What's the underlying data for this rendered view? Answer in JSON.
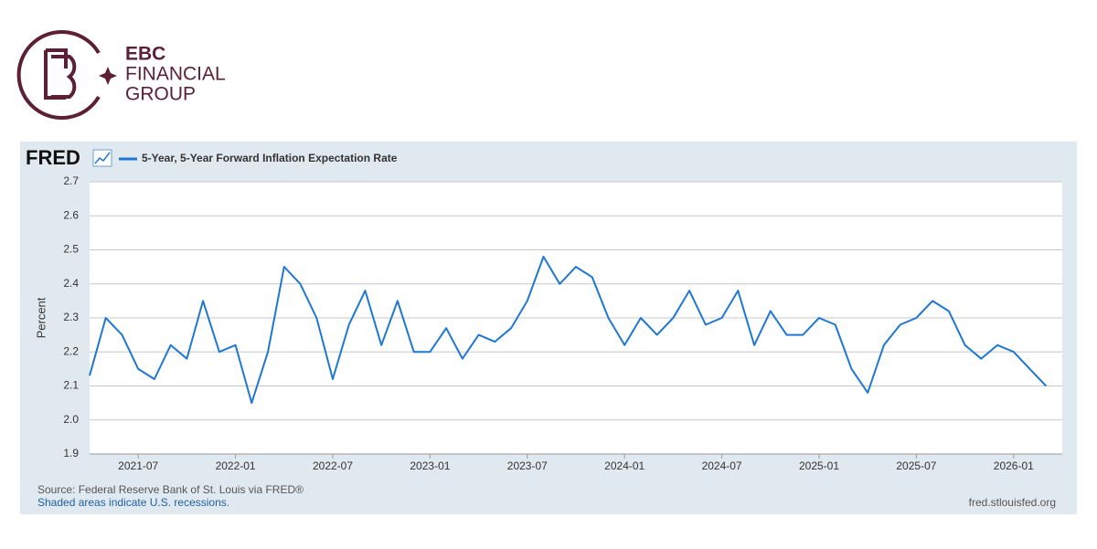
{
  "logo": {
    "name": "EBC",
    "lines": [
      "FINANCIAL",
      "GROUP"
    ]
  },
  "chart_data": {
    "type": "line",
    "brand": "FRED",
    "y_label": "Percent",
    "source": "Source: Federal Reserve Bank of St. Louis via FRED®",
    "note": "Shaded areas indicate U.S. recessions.",
    "site": "fred.stlouisfed.org",
    "x": [
      "2021-04",
      "2021-05",
      "2021-06",
      "2021-07",
      "2021-08",
      "2021-09",
      "2021-10",
      "2021-11",
      "2021-12",
      "2022-01",
      "2022-02",
      "2022-03",
      "2022-04",
      "2022-05",
      "2022-06",
      "2022-07",
      "2022-08",
      "2022-09",
      "2022-10",
      "2022-11",
      "2022-12",
      "2023-01",
      "2023-02",
      "2023-03",
      "2023-04",
      "2023-05",
      "2023-06",
      "2023-07",
      "2023-08",
      "2023-09",
      "2023-10",
      "2023-11",
      "2023-12",
      "2024-01",
      "2024-02",
      "2024-03",
      "2024-04",
      "2024-05",
      "2024-06",
      "2024-07",
      "2024-08",
      "2024-09",
      "2024-10",
      "2024-11",
      "2024-12",
      "2025-01",
      "2025-02",
      "2025-03",
      "2025-04",
      "2025-05",
      "2025-06",
      "2025-07",
      "2025-08",
      "2025-09",
      "2025-10",
      "2025-11",
      "2025-12",
      "2026-01",
      "2026-02",
      "2026-03"
    ],
    "series": [
      {
        "name": "5-Year, 5-Year Forward Inflation Expectation Rate",
        "color": "#1f77d4",
        "values": [
          2.13,
          2.3,
          2.25,
          2.15,
          2.12,
          2.22,
          2.18,
          2.35,
          2.2,
          2.22,
          2.05,
          2.2,
          2.45,
          2.4,
          2.3,
          2.12,
          2.28,
          2.38,
          2.22,
          2.35,
          2.2,
          2.2,
          2.27,
          2.18,
          2.25,
          2.23,
          2.27,
          2.35,
          2.48,
          2.4,
          2.45,
          2.42,
          2.3,
          2.22,
          2.3,
          2.25,
          2.3,
          2.38,
          2.28,
          2.3,
          2.38,
          2.22,
          2.32,
          2.25,
          2.25,
          2.3,
          2.28,
          2.15,
          2.08,
          2.22,
          2.28,
          2.3,
          2.35,
          2.32,
          2.22,
          2.18,
          2.22,
          2.2,
          2.15,
          2.1
        ]
      }
    ],
    "xlim": [
      "2021-04",
      "2026-04"
    ],
    "xticks": [
      "2021-07",
      "2022-01",
      "2022-07",
      "2023-01",
      "2023-07",
      "2024-01",
      "2024-07",
      "2025-01",
      "2025-07",
      "2026-01"
    ],
    "ylim": [
      1.9,
      2.7
    ],
    "yticks": [
      1.9,
      {
        "value": 2,
        "label": "2.0"
      },
      2.1,
      2.2,
      2.3,
      2.4,
      2.5,
      2.6,
      2.7
    ],
    "grid": true
  }
}
